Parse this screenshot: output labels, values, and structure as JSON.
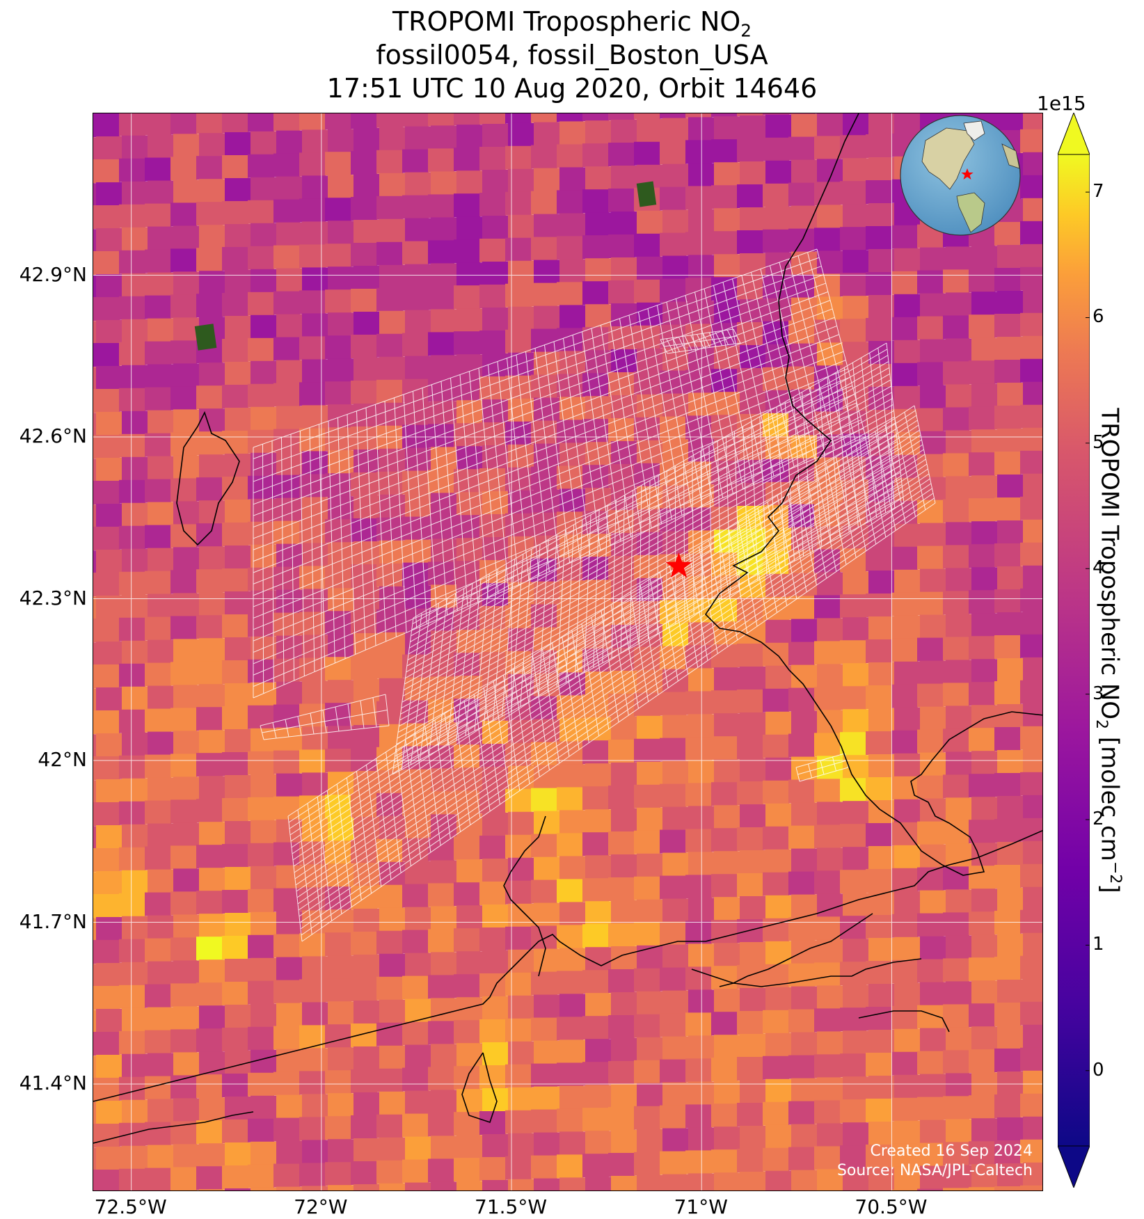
{
  "title": {
    "line1_prefix": "TROPOMI Tropospheric NO",
    "line1_sub": "2",
    "line2": "fossil0054, fossil_Boston_USA",
    "line3": "17:51 UTC 10 Aug 2020, Orbit 14646"
  },
  "map": {
    "type": "geographic map",
    "lon_range": [
      -72.6,
      -70.1
    ],
    "lat_range": [
      41.2,
      43.2
    ],
    "lat_labels": [
      "42.9°N",
      "42.6°N",
      "42.3°N",
      "42°N",
      "41.7°N",
      "41.4°N"
    ],
    "lat_values": [
      42.9,
      42.6,
      42.3,
      42.0,
      41.7,
      41.4
    ],
    "lon_labels": [
      "72.5°W",
      "72°W",
      "71.5°W",
      "71°W",
      "70.5°W"
    ],
    "lon_values": [
      -72.5,
      -72.0,
      -71.5,
      -71.0,
      -70.5
    ],
    "grid": true,
    "marker": {
      "name": "red-star",
      "lon": -71.06,
      "lat": 42.36,
      "color": "#ff0000"
    },
    "colormap": "plasma",
    "coastline_color": "#000000",
    "sounding_outline_color": "#ffffff"
  },
  "colorbar": {
    "label_prefix": "TROPOMI Tropospheric NO",
    "label_sub": "2",
    "label_suffix": " [molec cm",
    "label_sup": "−2",
    "label_end": "]",
    "exponent": "1e15",
    "ticks": [
      "0",
      "1",
      "2",
      "3",
      "4",
      "5",
      "6",
      "7"
    ],
    "tick_values": [
      0,
      1,
      2,
      3,
      4,
      5,
      6,
      7
    ],
    "range": [
      -0.6,
      7.3
    ],
    "extend": "both"
  },
  "inset": {
    "name": "globe-locator",
    "marker_color": "#ff0000"
  },
  "credits": {
    "created": "Created 16 Sep 2024",
    "source": "Source: NASA/JPL-Caltech"
  }
}
